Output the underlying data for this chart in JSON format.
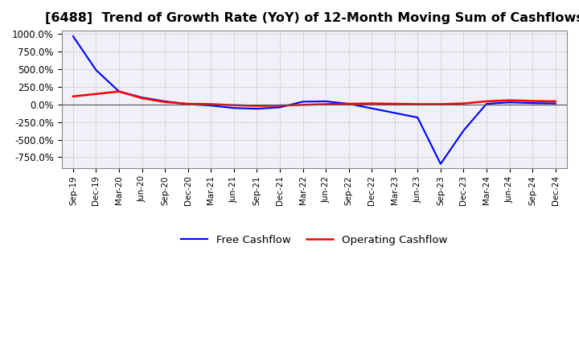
{
  "title": "[6488]  Trend of Growth Rate (YoY) of 12-Month Moving Sum of Cashflows",
  "title_fontsize": 11.5,
  "ylim": [
    -900,
    1050
  ],
  "yticks": [
    -750,
    -500,
    -250,
    0,
    250,
    500,
    750,
    1000
  ],
  "background_color": "#ffffff",
  "plot_bg_color": "#f0f0f8",
  "grid_color": "#aaaaaa",
  "operating_cashflow_color": "#ff0000",
  "free_cashflow_color": "#0000ff",
  "legend_labels": [
    "Operating Cashflow",
    "Free Cashflow"
  ],
  "x_labels": [
    "Sep-19",
    "Dec-19",
    "Mar-20",
    "Jun-20",
    "Sep-20",
    "Dec-20",
    "Mar-21",
    "Jun-21",
    "Sep-21",
    "Dec-21",
    "Mar-22",
    "Jun-22",
    "Sep-22",
    "Dec-22",
    "Mar-23",
    "Jun-23",
    "Sep-23",
    "Dec-23",
    "Mar-24",
    "Jun-24",
    "Sep-24",
    "Dec-24"
  ],
  "operating_cashflow": [
    115,
    150,
    185,
    90,
    35,
    10,
    5,
    -10,
    -20,
    -15,
    -5,
    5,
    10,
    15,
    10,
    5,
    5,
    15,
    45,
    60,
    50,
    45
  ],
  "free_cashflow": [
    970,
    490,
    185,
    100,
    45,
    5,
    -15,
    -50,
    -60,
    -40,
    40,
    45,
    10,
    -55,
    -120,
    -185,
    -845,
    -370,
    10,
    30,
    20,
    15
  ]
}
